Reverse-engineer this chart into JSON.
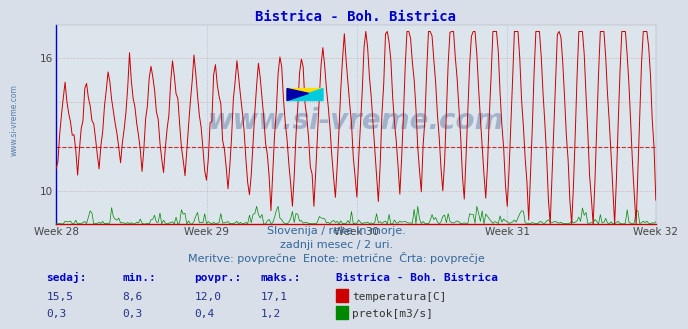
{
  "title": "Bistrica - Boh. Bistrica",
  "title_color": "#0000cc",
  "title_fontsize": 10,
  "bg_color": "#d8dfe8",
  "plot_bg_color": "#dce4ec",
  "xlabel_weeks": [
    "Week 28",
    "Week 29",
    "Week 30",
    "Week 31",
    "Week 32"
  ],
  "xlim": [
    0,
    335
  ],
  "ylim_temp": [
    8.5,
    17.5
  ],
  "temp_yticks": [
    10,
    16
  ],
  "temp_avg": 12.0,
  "temp_color": "#cc0000",
  "flow_color": "#008800",
  "avg_line_color": "#cc0000",
  "avg_line_style": "--",
  "grid_color_h": "#cc9999",
  "grid_color_v": "#aaaacc",
  "grid_style": ":",
  "watermark_text": "www.si-vreme.com",
  "watermark_color": "#1a4080",
  "watermark_alpha": 0.3,
  "left_label": "www.si-vreme.com",
  "left_label_color": "#336699",
  "footer_lines": [
    "Slovenija / reke in morje.",
    "zadnji mesec / 2 uri.",
    "Meritve: povprečne  Enote: metrične  Črta: povprečje"
  ],
  "footer_color": "#336699",
  "footer_fontsize": 8,
  "table_headers": [
    "sedaj:",
    "min.:",
    "povpr.:",
    "maks.:"
  ],
  "table_header_color": "#0000cc",
  "row1_label": "temperatura[C]",
  "row1_color": "#cc0000",
  "row1_values": [
    "15,5",
    "8,6",
    "12,0",
    "17,1"
  ],
  "row2_label": "pretok[m3/s]",
  "row2_color": "#008800",
  "row2_values": [
    "0,3",
    "0,3",
    "0,4",
    "1,2"
  ],
  "station_label": "Bistrica - Boh. Bistrica",
  "n_points": 336,
  "week_tick_positions": [
    0,
    84,
    168,
    252,
    335
  ],
  "axis_left_color": "#0000cc",
  "axis_bottom_color": "#cc0000"
}
